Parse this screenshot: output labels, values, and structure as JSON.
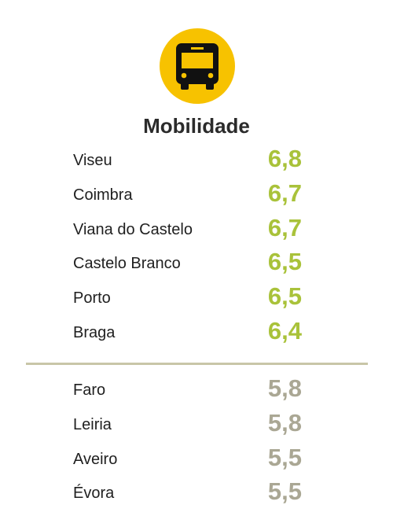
{
  "icon": "bus-icon",
  "colors": {
    "icon_circle": "#f7c200",
    "icon_glyph": "#111111",
    "top_group_value": "#a9c23a",
    "bottom_group_value": "#aaa794",
    "divider": "#c8c6a8",
    "label_text": "#1f1f1f"
  },
  "title": "Mobilidade",
  "chart_data": {
    "type": "table",
    "title": "Mobilidade",
    "groups": [
      {
        "rows": [
          {
            "label": "Viseu",
            "value": "6,8"
          },
          {
            "label": "Coimbra",
            "value": "6,7"
          },
          {
            "label": "Viana do Castelo",
            "value": "6,7"
          },
          {
            "label": "Castelo Branco",
            "value": "6,5"
          },
          {
            "label": "Porto",
            "value": "6,5"
          },
          {
            "label": "Braga",
            "value": "6,4"
          }
        ]
      },
      {
        "rows": [
          {
            "label": "Faro",
            "value": "5,8"
          },
          {
            "label": "Leiria",
            "value": "5,8"
          },
          {
            "label": "Aveiro",
            "value": "5,5"
          },
          {
            "label": "Évora",
            "value": "5,5"
          }
        ]
      }
    ]
  }
}
